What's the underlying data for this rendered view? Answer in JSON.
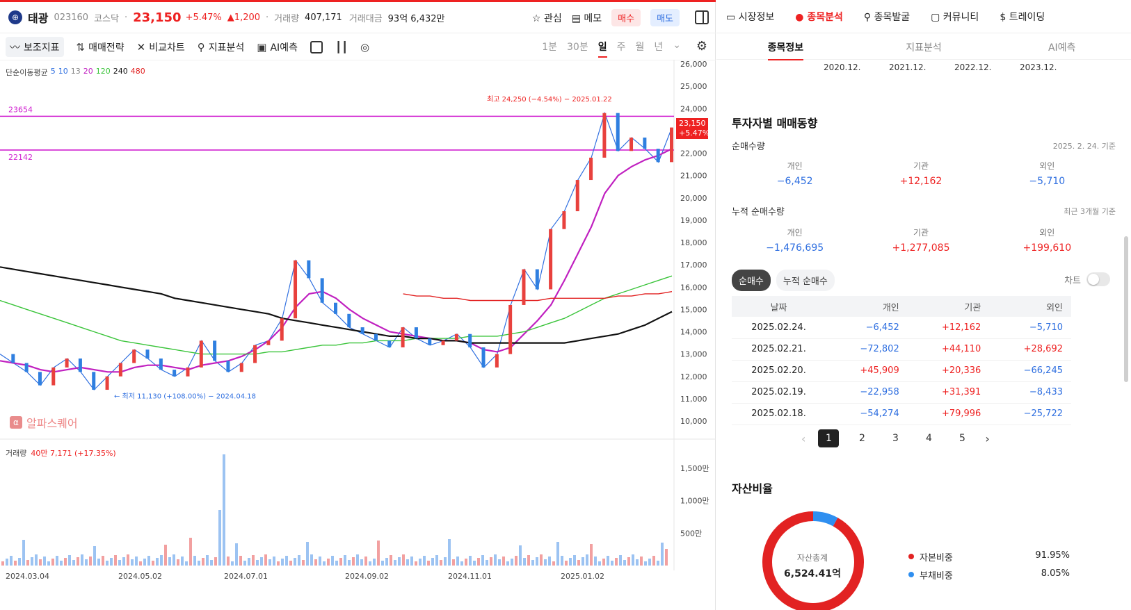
{
  "header": {
    "logo_glyph": "⊕",
    "name": "태광",
    "code": "023160",
    "market": "코스닥",
    "price": "23,150",
    "change_pct": "+5.47%",
    "change_abs": "▲1,200",
    "volume_label": "거래량",
    "volume": "407,171",
    "amount_label": "거래대금",
    "amount": "93억 6,432만",
    "watch": "관심",
    "memo": "메모",
    "buy": "매수",
    "sell": "매도"
  },
  "toolbar": {
    "items": [
      "보조지표",
      "매매전략",
      "비교차트",
      "지표분석",
      "AI예측"
    ],
    "periods": [
      "1분",
      "30분",
      "일",
      "주",
      "월",
      "년"
    ],
    "active_period": "일"
  },
  "chart_legend": {
    "title": "단순이동평균",
    "mas": [
      {
        "label": "5",
        "color": "#2f6fe0"
      },
      {
        "label": "10",
        "color": "#2f6fe0"
      },
      {
        "label": "13",
        "color": "#888888"
      },
      {
        "label": "20",
        "color": "#c020c0"
      },
      {
        "label": "120",
        "color": "#3ac43a"
      },
      {
        "label": "240",
        "color": "#111111"
      },
      {
        "label": "480",
        "color": "#e22222"
      }
    ]
  },
  "chart_data": {
    "type": "line",
    "title": "",
    "yaxis_ticks": [
      "26,000",
      "25,000",
      "24,000",
      "23,000",
      "22,000",
      "21,000",
      "20,000",
      "19,000",
      "18,000",
      "17,000",
      "16,000",
      "15,000",
      "14,000",
      "13,000",
      "12,000",
      "11,000",
      "10,000"
    ],
    "xaxis_ticks": [
      "2024.03.04",
      "2024.05.02",
      "2024.07.01",
      "2024.09.02",
      "2024.11.01",
      "2025.01.02"
    ],
    "ylim": [
      10000,
      26000
    ],
    "high_annotation": "최고 24,250 (−4.54%) − 2025.01.22",
    "low_annotation": "← 최저 11,130 (+108.00%) − 2024.04.18",
    "price_tag_top": "23,150",
    "price_tag_bottom": "+5.47%",
    "hlines": [
      {
        "label": "23654",
        "value": 23654,
        "color": "#d020d0"
      },
      {
        "label": "22142",
        "value": 22142,
        "color": "#d020d0"
      }
    ],
    "series": [
      {
        "name": "Close",
        "color": "#2f6fe0",
        "values": [
          13000,
          12600,
          12200,
          11600,
          12400,
          12800,
          12200,
          11400,
          12000,
          12600,
          13200,
          12800,
          12300,
          12000,
          12400,
          13600,
          12700,
          12200,
          12600,
          13400,
          13600,
          14600,
          17200,
          16400,
          15300,
          14800,
          14200,
          13900,
          13600,
          13300,
          14200,
          13700,
          13400,
          13600,
          13900,
          13300,
          12400,
          13000,
          15200,
          16800,
          15900,
          18600,
          19400,
          20800,
          21800,
          23800,
          22100,
          22700,
          22200,
          21600,
          23150
        ]
      },
      {
        "name": "MA20",
        "color": "#c020c0",
        "values": [
          12700,
          12600,
          12500,
          12300,
          12200,
          12300,
          12400,
          12300,
          12200,
          12200,
          12400,
          12500,
          12500,
          12400,
          12300,
          12500,
          12600,
          12700,
          12900,
          13200,
          13600,
          14200,
          15100,
          15700,
          15800,
          15500,
          15000,
          14600,
          14300,
          14000,
          13900,
          13800,
          13700,
          13600,
          13600,
          13500,
          13200,
          13100,
          13300,
          13900,
          14500,
          15200,
          16300,
          17500,
          18700,
          20200,
          21000,
          21400,
          21700,
          21900,
          22200
        ]
      },
      {
        "name": "MA120",
        "color": "#3ac43a",
        "values": [
          15400,
          15200,
          15000,
          14800,
          14600,
          14400,
          14200,
          14000,
          13800,
          13600,
          13500,
          13400,
          13300,
          13200,
          13100,
          13000,
          13000,
          13000,
          13000,
          13000,
          13100,
          13100,
          13200,
          13300,
          13400,
          13400,
          13500,
          13500,
          13600,
          13600,
          13600,
          13700,
          13700,
          13700,
          13700,
          13800,
          13800,
          13800,
          13900,
          14000,
          14200,
          14400,
          14600,
          14900,
          15200,
          15500,
          15700,
          15900,
          16100,
          16300,
          16500
        ]
      },
      {
        "name": "MA240",
        "color": "#111111",
        "values": [
          16900,
          16800,
          16700,
          16600,
          16500,
          16400,
          16300,
          16200,
          16100,
          16000,
          15900,
          15800,
          15700,
          15500,
          15400,
          15300,
          15200,
          15100,
          15000,
          14900,
          14800,
          14600,
          14500,
          14400,
          14300,
          14200,
          14100,
          14000,
          13900,
          13800,
          13800,
          13700,
          13700,
          13600,
          13600,
          13500,
          13500,
          13500,
          13500,
          13500,
          13500,
          13500,
          13500,
          13600,
          13700,
          13800,
          13900,
          14100,
          14300,
          14600,
          14900
        ]
      },
      {
        "name": "MA480",
        "color": "#e22222",
        "values": [
          null,
          null,
          null,
          null,
          null,
          null,
          null,
          null,
          null,
          null,
          null,
          null,
          null,
          null,
          null,
          null,
          null,
          null,
          null,
          null,
          null,
          null,
          null,
          null,
          null,
          null,
          null,
          null,
          null,
          null,
          15700,
          15600,
          15600,
          15500,
          15500,
          15400,
          15400,
          15400,
          15400,
          15400,
          15400,
          15500,
          15500,
          15500,
          15500,
          15500,
          15600,
          15600,
          15700,
          15700,
          15800
        ]
      }
    ]
  },
  "volume": {
    "label": "거래량",
    "value_text": "40만 7,171 (+17.35%)",
    "ticks": [
      "1,500만",
      "1,000만",
      "500만"
    ]
  },
  "watermark": {
    "glyph": "α",
    "text": "알파스퀘어"
  },
  "right": {
    "topnav": [
      "시장정보",
      "종목분석",
      "종목발굴",
      "커뮤니티",
      "트레이딩"
    ],
    "topnav_active": "종목분석",
    "tabs": [
      "종목정보",
      "지표분석",
      "AI예측"
    ],
    "tab_active": "종목정보",
    "years": [
      "2020.12.",
      "2021.12.",
      "2022.12.",
      "2023.12."
    ],
    "investor_title": "투자자별 매매동향",
    "net_title": "순매수량",
    "net_date": "2025. 2. 24. 기준",
    "net": [
      {
        "label": "개인",
        "value": "−6,452",
        "tone": "blue"
      },
      {
        "label": "기관",
        "value": "+12,162",
        "tone": "red"
      },
      {
        "label": "외인",
        "value": "−5,710",
        "tone": "blue"
      }
    ],
    "cum_title": "누적 순매수량",
    "cum_range": "최근 3개월 기준",
    "cum": [
      {
        "label": "개인",
        "value": "−1,476,695",
        "tone": "blue"
      },
      {
        "label": "기관",
        "value": "+1,277,085",
        "tone": "red"
      },
      {
        "label": "외인",
        "value": "+199,610",
        "tone": "red"
      }
    ],
    "seg": [
      "순매수",
      "누적 순매수"
    ],
    "chart_toggle_label": "차트",
    "table_headers": [
      "날짜",
      "개인",
      "기관",
      "외인"
    ],
    "rows": [
      [
        "2025.02.24.",
        "−6,452",
        "+12,162",
        "−5,710"
      ],
      [
        "2025.02.21.",
        "−72,802",
        "+44,110",
        "+28,692"
      ],
      [
        "2025.02.20.",
        "+45,909",
        "+20,336",
        "−66,245"
      ],
      [
        "2025.02.19.",
        "−22,958",
        "+31,391",
        "−8,433"
      ],
      [
        "2025.02.18.",
        "−54,274",
        "+79,996",
        "−25,722"
      ]
    ],
    "pages": [
      "1",
      "2",
      "3",
      "4",
      "5"
    ],
    "active_page": "1",
    "asset_title": "자산비율",
    "asset_total_label": "자산총계",
    "asset_total": "6,524.41억",
    "asset_rows": [
      {
        "label": "자본비중",
        "value": "91.95%",
        "color": "#e22222",
        "fraction": 0.9195
      },
      {
        "label": "부채비중",
        "value": "8.05%",
        "color": "#2f8ff0",
        "fraction": 0.0805
      }
    ]
  }
}
